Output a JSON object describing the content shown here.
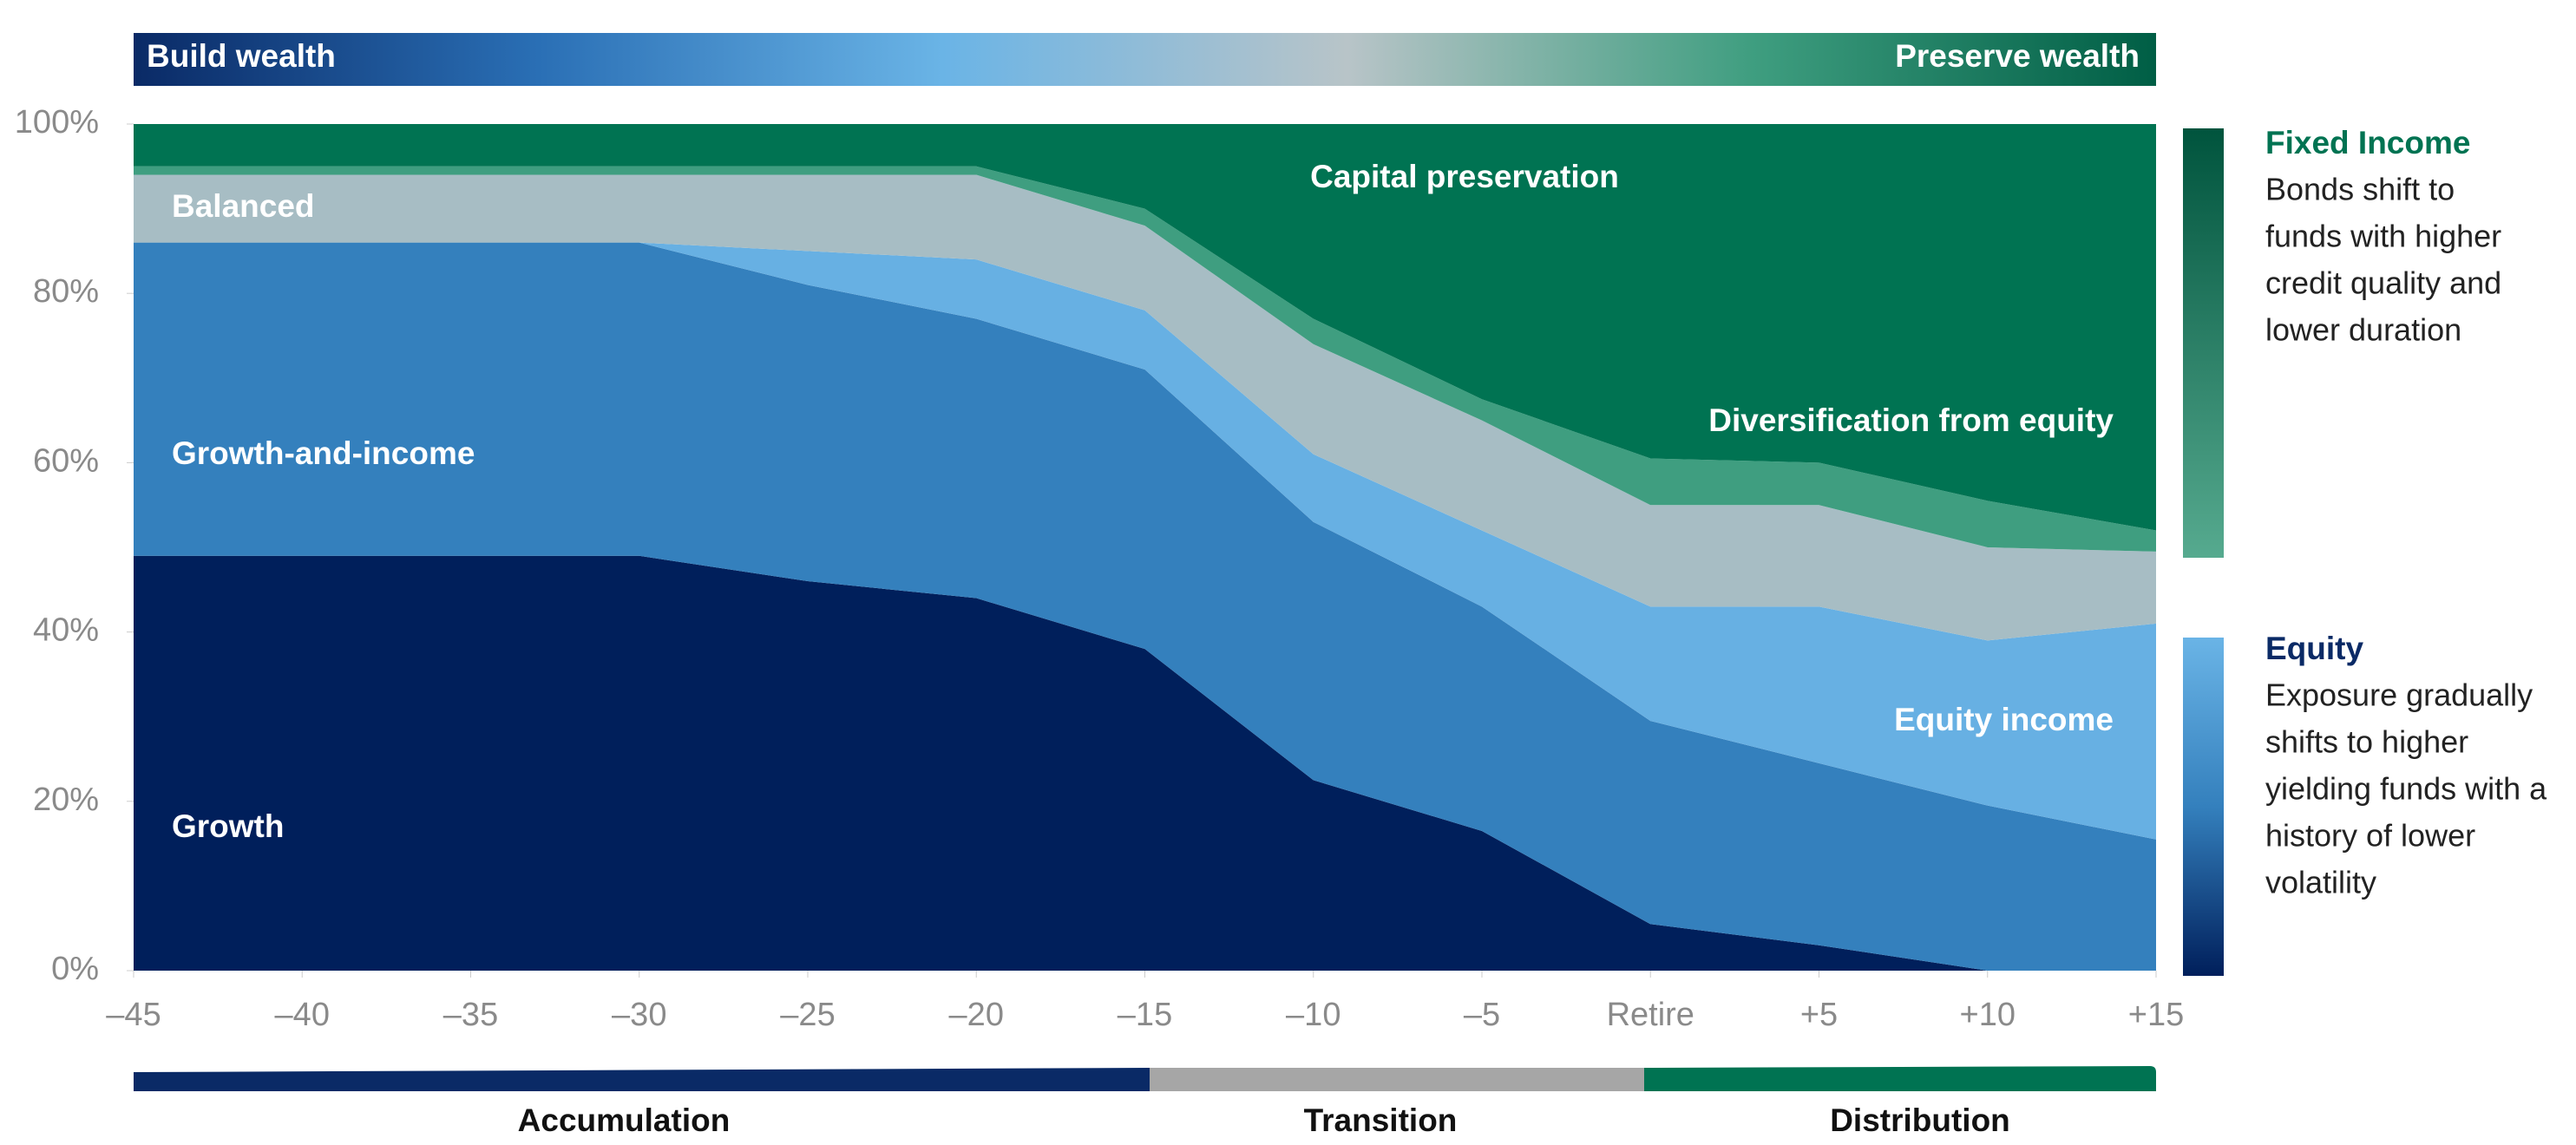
{
  "chart_data": {
    "type": "stacked-area",
    "banner": {
      "left": "Build wealth",
      "right": "Preserve wealth"
    },
    "x": [
      -45,
      -40,
      -35,
      -30,
      -25,
      -20,
      -15,
      -10,
      -5,
      0,
      5,
      10,
      15
    ],
    "xlim": [
      -45,
      15
    ],
    "xticks": [
      {
        "value": -45,
        "label": "–45"
      },
      {
        "value": -40,
        "label": "–40"
      },
      {
        "value": -35,
        "label": "–35"
      },
      {
        "value": -30,
        "label": "–30"
      },
      {
        "value": -25,
        "label": "–25"
      },
      {
        "value": -20,
        "label": "–20"
      },
      {
        "value": -15,
        "label": "–15"
      },
      {
        "value": -10,
        "label": "–10"
      },
      {
        "value": -5,
        "label": "–5"
      },
      {
        "value": 0,
        "label": "Retire"
      },
      {
        "value": 5,
        "label": "+5"
      },
      {
        "value": 10,
        "label": "+10"
      },
      {
        "value": 15,
        "label": "+15"
      }
    ],
    "ylim": [
      0,
      100
    ],
    "yticks": [
      {
        "value": 0,
        "label": "0%"
      },
      {
        "value": 20,
        "label": "20%"
      },
      {
        "value": 40,
        "label": "40%"
      },
      {
        "value": 60,
        "label": "60%"
      },
      {
        "value": 80,
        "label": "80%"
      },
      {
        "value": 100,
        "label": "100%"
      }
    ],
    "series": [
      {
        "name": "Growth",
        "color": "#001f5b",
        "values": [
          49,
          49,
          49,
          49,
          46,
          44,
          38,
          22.5,
          16.5,
          5.5,
          3,
          0,
          0
        ]
      },
      {
        "name": "Growth-and-income",
        "color": "#3480bd",
        "values": [
          37,
          37,
          37,
          37,
          35,
          33,
          33,
          30.5,
          26.5,
          24,
          21.5,
          19.5,
          15.5
        ]
      },
      {
        "name": "Equity income",
        "color": "#67b0e3",
        "values": [
          0,
          0,
          0,
          0,
          4,
          7,
          7,
          8,
          9,
          13.5,
          18.5,
          19.5,
          25.5
        ]
      },
      {
        "name": "Balanced",
        "color": "#a7bdc4",
        "values": [
          8,
          8,
          8,
          8,
          9,
          10,
          10,
          13,
          13,
          12,
          12,
          11,
          8.5
        ]
      },
      {
        "name": "Diversification from equity",
        "color": "#3f9e80",
        "values": [
          1,
          1,
          1,
          1,
          1,
          1,
          2,
          3,
          2.5,
          5.5,
          5,
          5.5,
          2.5
        ]
      },
      {
        "name": "Capital preservation",
        "color": "#007352",
        "values": [
          5,
          5,
          5,
          5,
          5,
          5,
          10,
          23,
          32.5,
          39.5,
          40,
          44.5,
          48
        ]
      }
    ],
    "side_notes": [
      {
        "title": "Fixed Income",
        "lines": [
          "Bonds shift to",
          "funds with higher",
          "credit quality and",
          "lower duration"
        ]
      },
      {
        "title": "Equity",
        "lines": [
          "Exposure gradually",
          "shifts to higher",
          "yielding funds with a",
          "history of lower",
          "volatility"
        ]
      }
    ],
    "phases": [
      "Accumulation",
      "Transition",
      "Distribution"
    ]
  }
}
